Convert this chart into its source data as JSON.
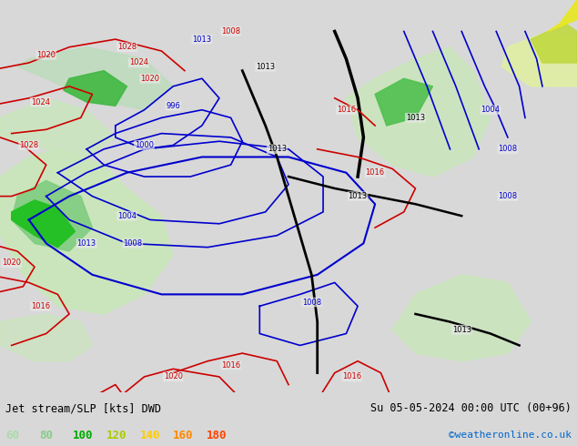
{
  "title_left": "Jet stream/SLP [kts] DWD",
  "title_right": "Su 05-05-2024 00:00 UTC (00+96)",
  "credit": "©weatheronline.co.uk",
  "legend_values": [
    "60",
    "80",
    "100",
    "120",
    "140",
    "160",
    "180"
  ],
  "legend_colors": [
    "#aaddaa",
    "#88cc88",
    "#00aa00",
    "#aacc00",
    "#ffcc00",
    "#ff8800",
    "#ff4400"
  ],
  "bg_color": "#d8d8d8",
  "panel_bg": "#e8e8e8",
  "bottom_bg": "#f0f0f0",
  "contour_color_red": "#cc0000",
  "contour_color_blue": "#0000cc",
  "contour_color_black": "#000000",
  "figsize": [
    6.34,
    4.9
  ],
  "dpi": 100
}
